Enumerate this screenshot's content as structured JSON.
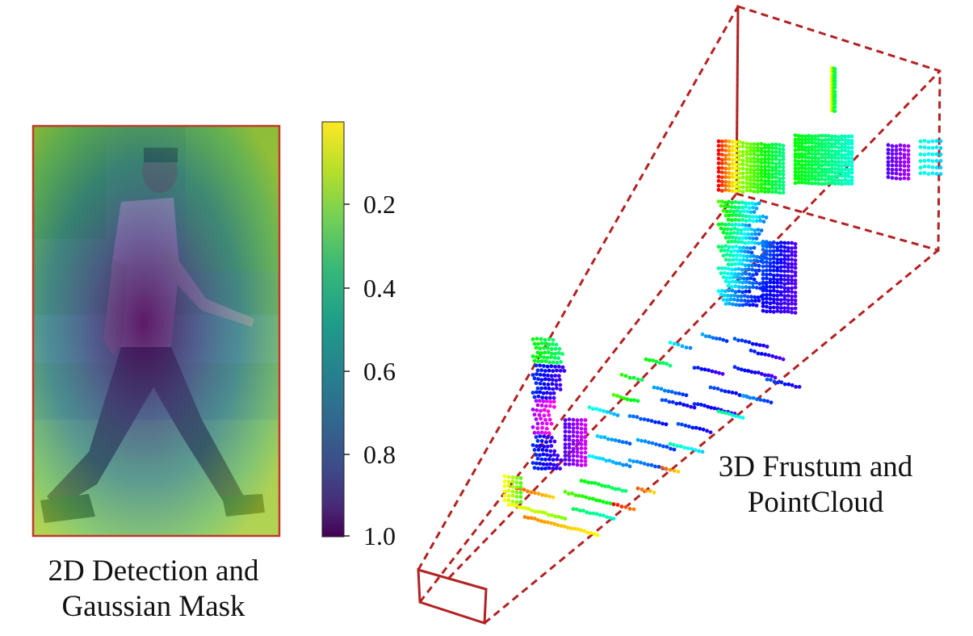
{
  "left_panel": {
    "caption_line1": "2D Detection and",
    "caption_line2": "Gaussian Mask"
  },
  "colorbar": {
    "colormap": "viridis (reversed)",
    "ticks": [
      "0.2",
      "0.4",
      "0.6",
      "0.8",
      "1.0"
    ]
  },
  "right_panel": {
    "caption_line1": "3D Frustum and",
    "caption_line2": "PointCloud",
    "frustum_color": "#b22222"
  },
  "colors": {
    "viridis": [
      "#fde725",
      "#b5de2b",
      "#6ece58",
      "#35b779",
      "#1f9e89",
      "#26828e",
      "#31688e",
      "#3e4989",
      "#482878",
      "#440154"
    ],
    "frame": "#c0392b"
  }
}
